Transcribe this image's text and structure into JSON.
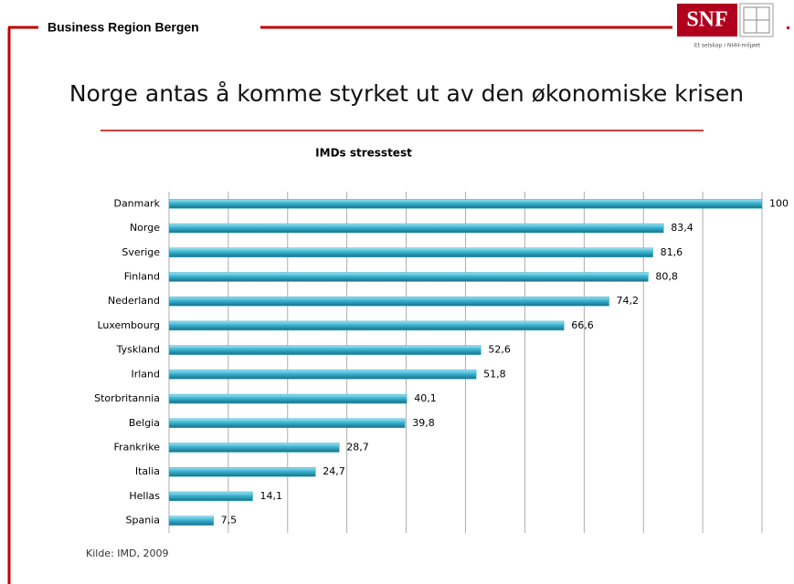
{
  "header": {
    "title": "Business Region Bergen",
    "logo": "SNF",
    "logo_tagline": "Et selskap i NHH-miljøet"
  },
  "slide_title": "Norge antas å komme styrket ut av den økonomiske krisen",
  "source": "Kilde: IMD, 2009",
  "chart_data": {
    "type": "bar",
    "orientation": "horizontal",
    "title": "IMDs stresstest",
    "categories": [
      "Danmark",
      "Norge",
      "Sverige",
      "Finland",
      "Nederland",
      "Luxembourg",
      "Tyskland",
      "Irland",
      "Storbritannia",
      "Belgia",
      "Frankrike",
      "Italia",
      "Hellas",
      "Spania"
    ],
    "values": [
      100,
      83.4,
      81.6,
      80.8,
      74.2,
      66.6,
      52.6,
      51.8,
      40.1,
      39.8,
      28.7,
      24.7,
      14.1,
      7.5
    ],
    "value_labels": [
      "100",
      "83,4",
      "81,6",
      "80,8",
      "74,2",
      "66,6",
      "52,6",
      "51,8",
      "40,1",
      "39,8",
      "28,7",
      "24,7",
      "14,1",
      "7,5"
    ],
    "color": "#37b2cf",
    "xlim": [
      0,
      100
    ],
    "xticks": [
      0,
      10,
      20,
      30,
      40,
      50,
      60,
      70,
      80,
      90,
      100
    ],
    "grid": true
  }
}
